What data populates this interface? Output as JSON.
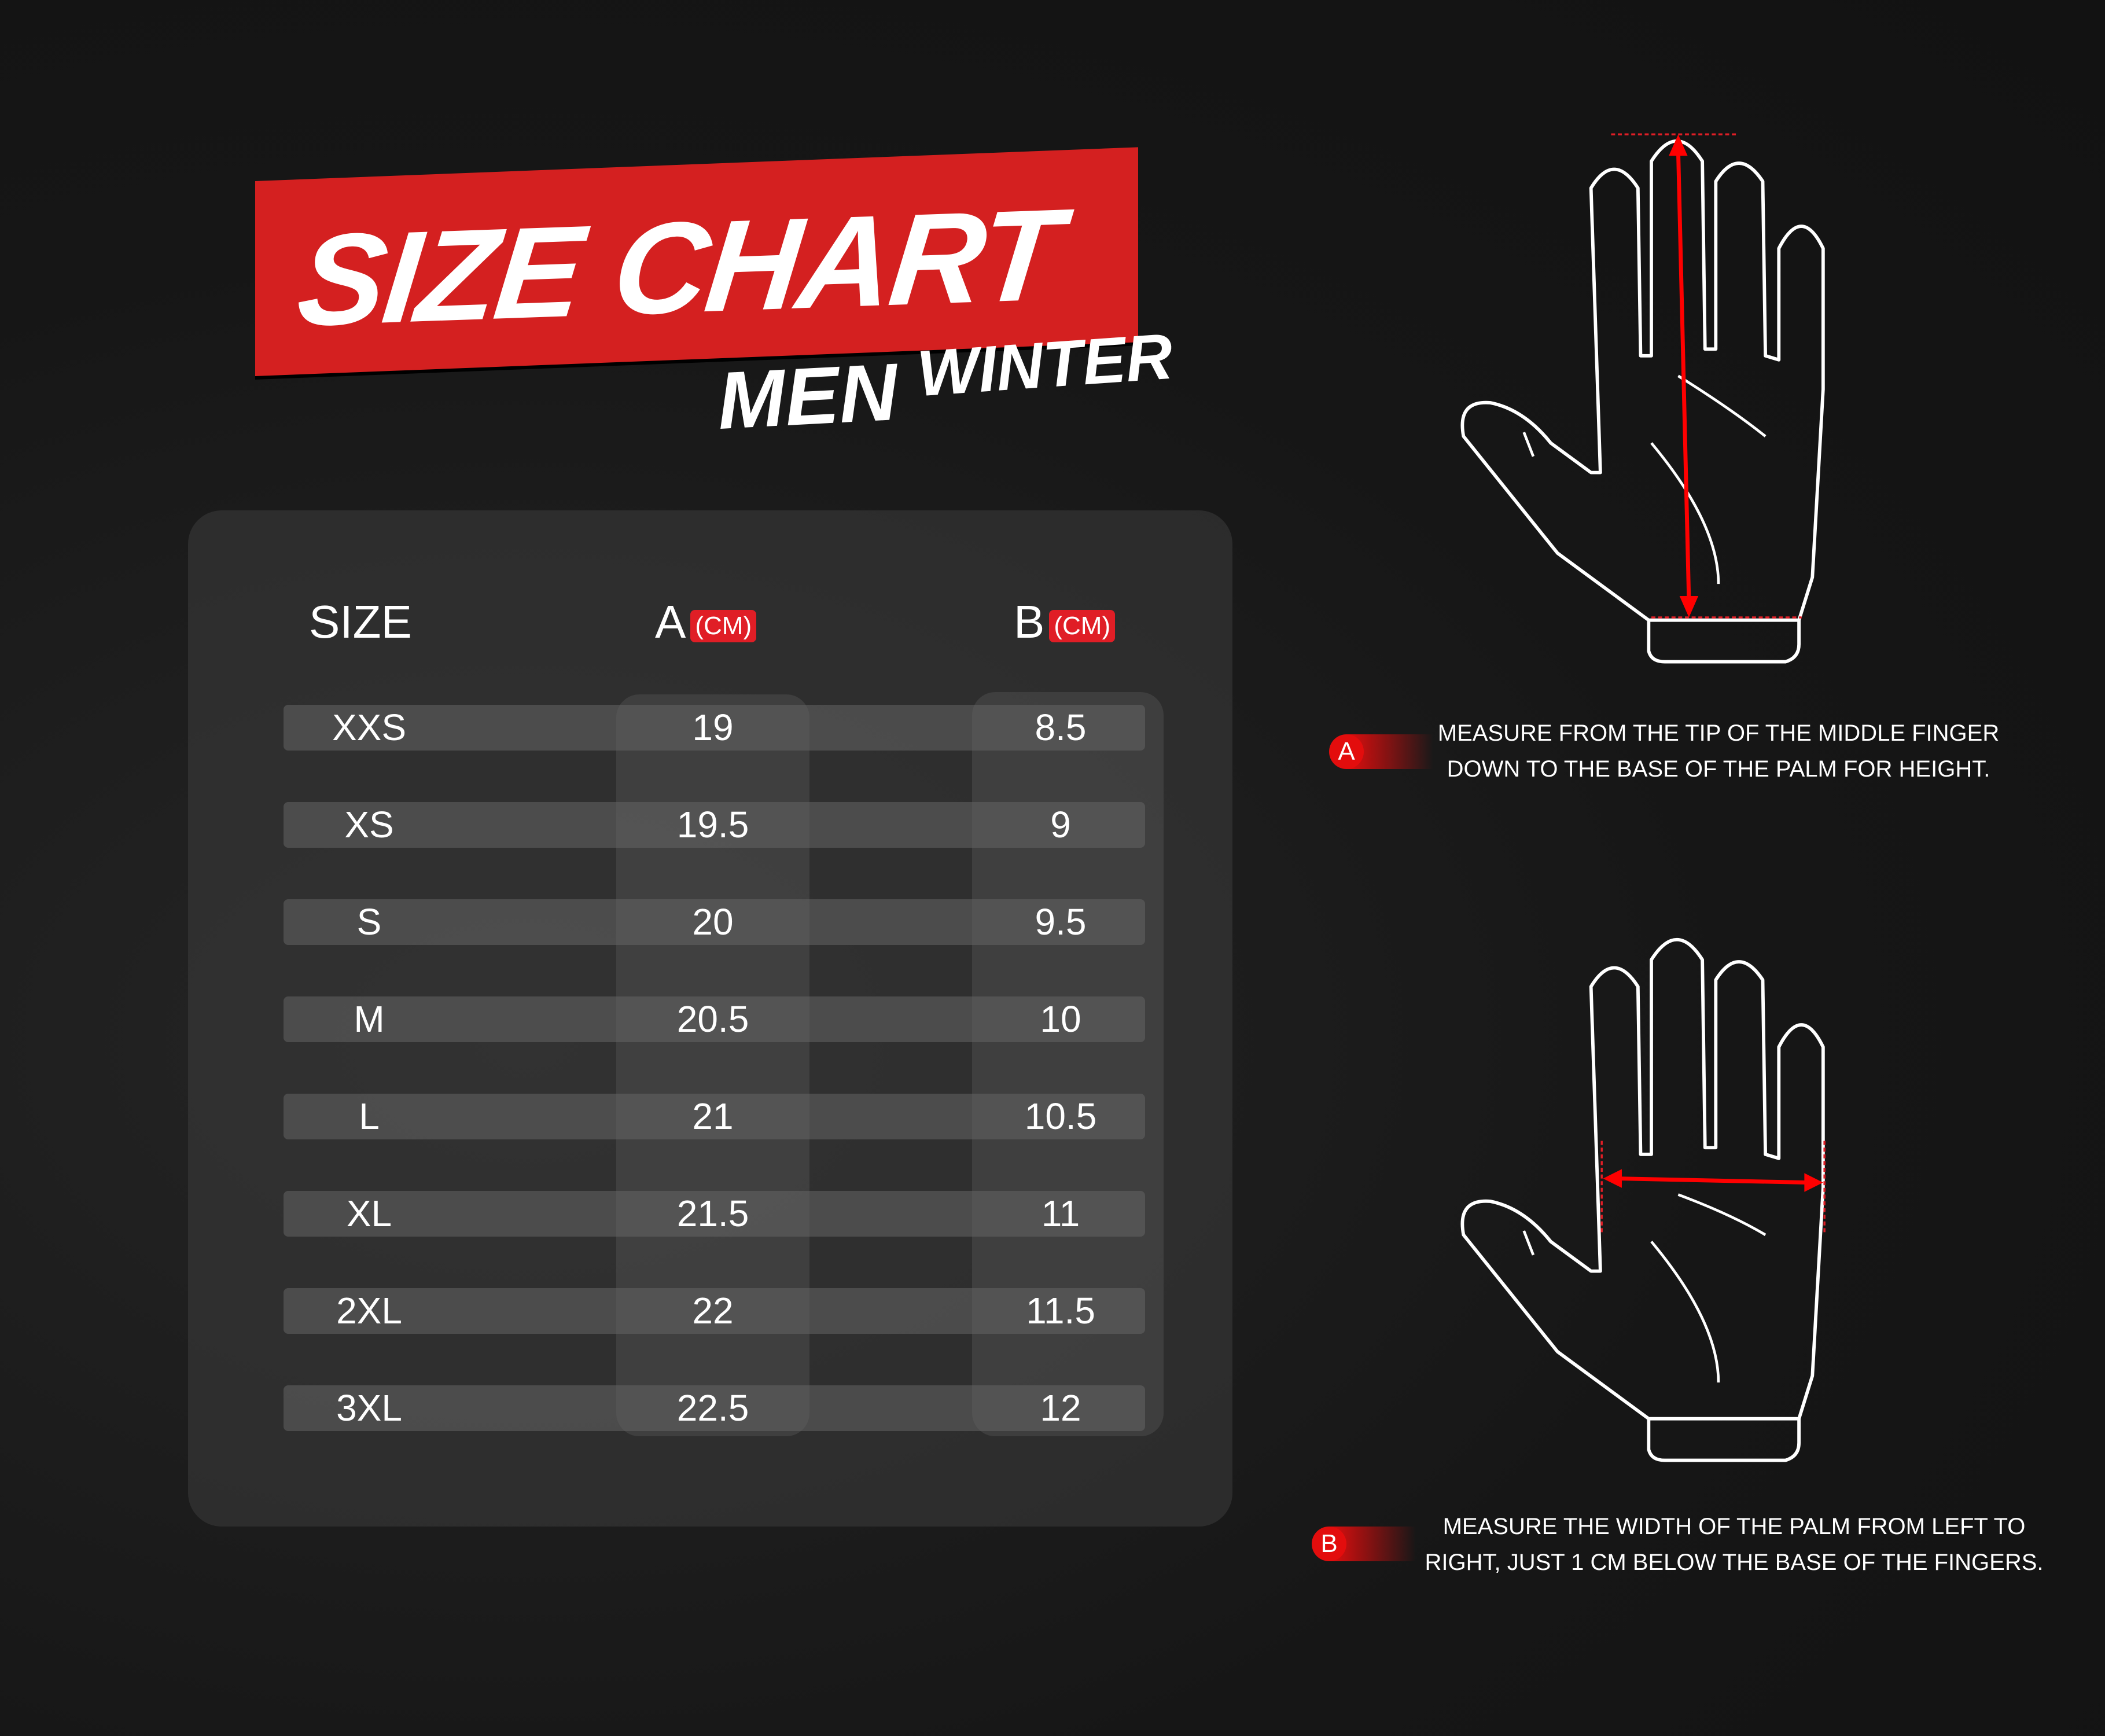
{
  "header": {
    "title": "SIZE CHART",
    "subtitle_1": "MEN",
    "subtitle_2": "WINTER"
  },
  "table": {
    "columns": [
      {
        "label": "SIZE"
      },
      {
        "label": "A",
        "unit": "(CM)"
      },
      {
        "label": "B",
        "unit": "(CM)"
      }
    ],
    "rows": [
      [
        "XXS",
        "19",
        "8.5"
      ],
      [
        "XS",
        "19.5",
        "9"
      ],
      [
        "S",
        "20",
        "9.5"
      ],
      [
        "M",
        "20.5",
        "10"
      ],
      [
        "L",
        "21",
        "10.5"
      ],
      [
        "XL",
        "21.5",
        "11"
      ],
      [
        "2XL",
        "22",
        "11.5"
      ],
      [
        "3XL",
        "22.5",
        "12"
      ]
    ]
  },
  "instructions": [
    {
      "badge": "A",
      "lines": [
        "MEASURE FROM THE TIP OF THE MIDDLE FINGER",
        "DOWN TO THE BASE OF THE PALM FOR HEIGHT."
      ]
    },
    {
      "badge": "B",
      "lines": [
        "MEASURE THE WIDTH OF THE PALM FROM LEFT TO",
        "RIGHT, JUST 1 CM BELOW THE BASE OF THE FINGERS."
      ]
    }
  ],
  "colors": {
    "accent": "#e01e26",
    "banner": "#d42020",
    "background": "#141414"
  },
  "icons": [
    "hand-outline-icon",
    "measure-arrow-icon"
  ]
}
